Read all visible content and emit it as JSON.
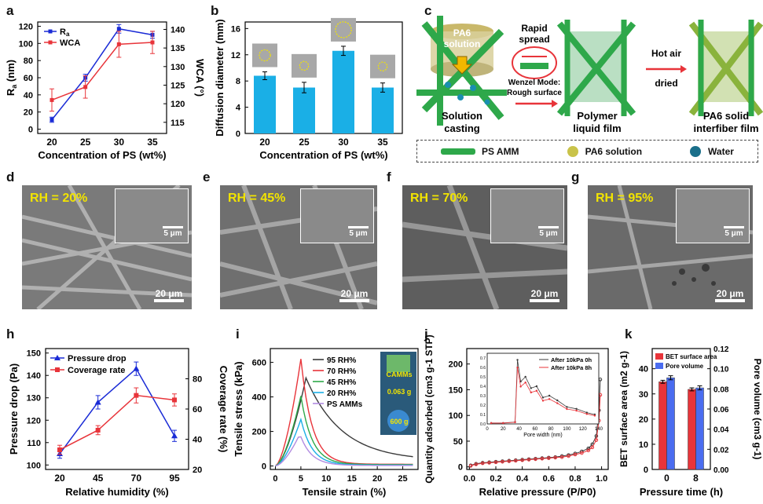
{
  "panels": {
    "a": "a",
    "b": "b",
    "c": "c",
    "d": "d",
    "e": "e",
    "f": "f",
    "g": "g",
    "h": "h",
    "i": "i",
    "j": "j",
    "k": "k"
  },
  "colors": {
    "blue": "#1a2bd6",
    "red": "#e8343a",
    "cyan": "#1aafe6",
    "green": "#2ea84a",
    "gray": "#3a3a3a",
    "purple": "#b18be0",
    "sem_text": "#f2e400"
  },
  "chart_data": [
    {
      "id": "a",
      "type": "line",
      "title": "",
      "xlabel": "Concentration of PS (wt%)",
      "ylabel_left": "Ra (nm)",
      "ylabel_left_main": "R",
      "ylabel_left_sub": "a",
      "ylabel_left_unit": " (nm)",
      "ylabel_right": "WCA (°)",
      "x": [
        20,
        25,
        30,
        35
      ],
      "xticks": [
        "20",
        "25",
        "30",
        "35"
      ],
      "ylim_left": [
        -5,
        125
      ],
      "yticks_left": [
        "0",
        "20",
        "40",
        "60",
        "80",
        "100",
        "120"
      ],
      "ylim_right": [
        112,
        142
      ],
      "yticks_right": [
        "115",
        "120",
        "125",
        "130",
        "135",
        "140"
      ],
      "series": [
        {
          "name": "Ra",
          "legend_main": "R",
          "legend_sub": "a",
          "axis": "left",
          "values": [
            11,
            60,
            117,
            110
          ],
          "err": [
            3,
            4,
            5,
            4
          ]
        },
        {
          "name": "WCA",
          "axis": "right",
          "values": [
            121,
            124.5,
            136,
            136.5
          ],
          "err": [
            3,
            3,
            3.5,
            3
          ]
        }
      ]
    },
    {
      "id": "b",
      "type": "bar",
      "xlabel": "Concentration of PS (wt%)",
      "ylabel": "Diffusion diameter (mm)",
      "categories": [
        "20",
        "25",
        "30",
        "35"
      ],
      "values": [
        8.8,
        7.0,
        12.6,
        7.0
      ],
      "err": [
        0.6,
        0.8,
        0.7,
        0.7
      ],
      "ylim": [
        0,
        17
      ],
      "yticks": [
        "0",
        "4",
        "8",
        "12",
        "16"
      ]
    },
    {
      "id": "h",
      "type": "line",
      "xlabel": "Relative humidity (%)",
      "ylabel_left": "Pressure drop (Pa)",
      "ylabel_right": "Coverage rate (%)",
      "x": [
        20,
        45,
        70,
        95
      ],
      "xticks": [
        "20",
        "45",
        "70",
        "95"
      ],
      "ylim_left": [
        98,
        152
      ],
      "yticks_left": [
        "100",
        "110",
        "120",
        "130",
        "140",
        "150"
      ],
      "ylim_right": [
        20,
        100
      ],
      "yticks_right": [
        "20",
        "40",
        "60",
        "80"
      ],
      "series": [
        {
          "name": "Pressure drop",
          "axis": "left",
          "values": [
            105,
            128,
            143,
            113
          ],
          "err": [
            2,
            3,
            3,
            2.5
          ]
        },
        {
          "name": "Coverage rate",
          "axis": "right",
          "values": [
            33,
            46,
            69,
            66
          ],
          "err": [
            3,
            3,
            5,
            4
          ]
        }
      ]
    },
    {
      "id": "i",
      "type": "line",
      "xlabel": "Tensile strain (%)",
      "ylabel": "Tensile stress (kPa)",
      "xlim": [
        -1,
        28
      ],
      "xticks": [
        "0",
        "5",
        "10",
        "15",
        "20",
        "25"
      ],
      "ylim": [
        -20,
        680
      ],
      "yticks": [
        "0",
        "200",
        "400",
        "600"
      ],
      "series": [
        {
          "name": "95 RH%",
          "peak_x": 6.0,
          "peak_y": 510,
          "tail": 30
        },
        {
          "name": "70 RH%",
          "peak_x": 5.0,
          "peak_y": 620,
          "tail": 10
        },
        {
          "name": "45 RH%",
          "peak_x": 5.0,
          "peak_y": 405,
          "tail": 8
        },
        {
          "name": "20 RH%",
          "peak_x": 5.0,
          "peak_y": 270,
          "tail": 5
        },
        {
          "name": "PS AMMs",
          "peak_x": 4.8,
          "peak_y": 185,
          "tail": 3
        }
      ],
      "inset_labels": {
        "top": "CAMMs",
        "mid": "0.063 g",
        "bottom": "600 g"
      }
    },
    {
      "id": "j",
      "type": "scatter",
      "xlabel": "Relative pressure (P/P0)",
      "ylabel": "Quantity adsorbed (cm3 g-1 STP)",
      "xlim": [
        -0.02,
        1.05
      ],
      "xticks": [
        "0.0",
        "0.2",
        "0.4",
        "0.6",
        "0.8",
        "1.0"
      ],
      "ylim": [
        -5,
        230
      ],
      "yticks": [
        "0",
        "50",
        "100",
        "150",
        "200"
      ],
      "series": [
        {
          "name": "After 10kPa 0h",
          "x": [
            0.01,
            0.05,
            0.1,
            0.15,
            0.2,
            0.25,
            0.3,
            0.35,
            0.4,
            0.45,
            0.5,
            0.55,
            0.6,
            0.65,
            0.7,
            0.75,
            0.8,
            0.85,
            0.9,
            0.93,
            0.96,
            0.98,
            0.99
          ],
          "y": [
            3,
            6,
            8,
            9,
            10,
            11,
            12,
            13,
            14,
            15,
            16,
            17,
            18,
            19,
            21,
            23,
            26,
            30,
            36,
            44,
            60,
            110,
            170
          ]
        },
        {
          "name": "After 10kPa 8h",
          "x": [
            0.01,
            0.05,
            0.1,
            0.15,
            0.2,
            0.25,
            0.3,
            0.35,
            0.4,
            0.45,
            0.5,
            0.55,
            0.6,
            0.65,
            0.7,
            0.75,
            0.8,
            0.85,
            0.9,
            0.93,
            0.96,
            0.98,
            0.99
          ],
          "y": [
            2,
            5,
            7,
            8,
            9,
            10,
            11,
            12,
            13,
            14,
            15,
            16,
            17,
            18,
            19,
            21,
            24,
            27,
            32,
            38,
            52,
            90,
            140
          ]
        }
      ],
      "inset": {
        "xlabel": "Pore width (nm)",
        "ylabel": "dV/dlog(W) Pore volume (cm3 g-1)",
        "xticks": [
          "0",
          "20",
          "40",
          "60",
          "80",
          "100",
          "120",
          "140"
        ],
        "yticks": [
          "0.0",
          "0.1",
          "0.2",
          "0.3",
          "0.4",
          "0.5",
          "0.6",
          "0.7"
        ],
        "legend": [
          "After 10kPa 0h",
          "After 10kPa 8h"
        ]
      }
    },
    {
      "id": "k",
      "type": "bar",
      "xlabel": "Pressure time (h)",
      "ylabel_left": "BET surface area (m2 g-1)",
      "ylabel_right": "Pore volume (cm3 g-1)",
      "categories": [
        "0",
        "8"
      ],
      "series": [
        {
          "name": "BET surface area",
          "axis": "left",
          "values": [
            34.8,
            31.8
          ],
          "err": [
            0.6,
            0.6
          ]
        },
        {
          "name": "Pore volume",
          "axis": "right",
          "values": [
            0.091,
            0.081
          ],
          "err": [
            0.002,
            0.002
          ]
        }
      ],
      "ylim_left": [
        0,
        48
      ],
      "yticks_left": [
        "0",
        "10",
        "20",
        "30",
        "40"
      ],
      "ylim_right": [
        0,
        0.12
      ],
      "yticks_right": [
        "0.00",
        "0.02",
        "0.04",
        "0.06",
        "0.08",
        "0.10",
        "0.12"
      ]
    }
  ],
  "schematic": {
    "pa6_solution": "PA6 solution",
    "rapid_spread": "Rapid spread",
    "wenzel": "Wenzel Mode:",
    "rough": "Rough surface",
    "hot_air": "Hot air",
    "dried": "dried",
    "step1_a": "Solution",
    "step1_b": "casting",
    "step2_a": "Polymer",
    "step2_b": "liquid film",
    "step3_a": "PA6 solid",
    "step3_b": "interfiber film",
    "legend": [
      "PS AMM",
      "PA6 solution",
      "Water"
    ]
  },
  "sem": [
    {
      "panel": "d",
      "label": "RH = 20%",
      "inset_scale": "5 μm",
      "scale": "20 μm"
    },
    {
      "panel": "e",
      "label": "RH = 45%",
      "inset_scale": "5 μm",
      "scale": "20 μm"
    },
    {
      "panel": "f",
      "label": "RH = 70%",
      "inset_scale": "5 μm",
      "scale": "20 μm"
    },
    {
      "panel": "g",
      "label": "RH = 95%",
      "inset_scale": "5 μm",
      "scale": "20 μm"
    }
  ]
}
